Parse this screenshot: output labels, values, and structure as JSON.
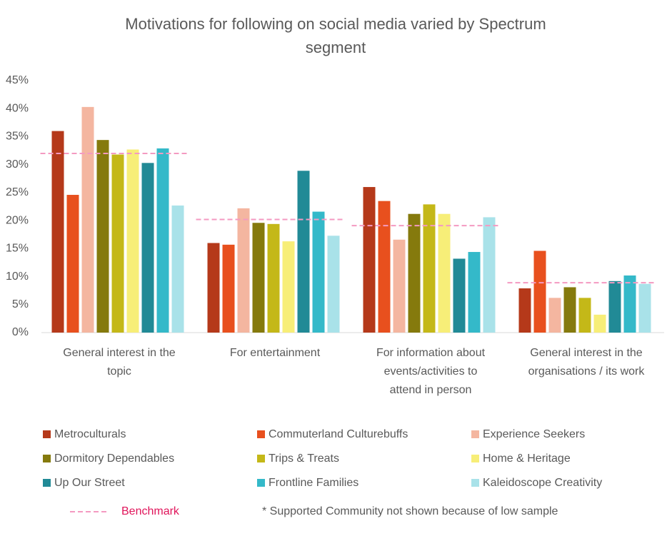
{
  "chart_data": {
    "type": "bar",
    "title": "Motivations for following on social media varied by Spectrum segment",
    "categories": [
      "General interest in the topic",
      "For entertainment",
      "For information about events/activities to attend in person",
      "General interest in the organisations / its work"
    ],
    "series": [
      {
        "name": "Metroculturals",
        "color": "#b5391a",
        "values": [
          36,
          16,
          26,
          7.9
        ]
      },
      {
        "name": "Commuterland Culturebuffs",
        "color": "#e8501e",
        "values": [
          24.6,
          15.7,
          23.5,
          14.6
        ]
      },
      {
        "name": "Experience Seekers",
        "color": "#f4b6a0",
        "values": [
          40.3,
          22.2,
          16.6,
          6.2
        ]
      },
      {
        "name": "Dormitory Dependables",
        "color": "#857a0d",
        "values": [
          34.4,
          19.6,
          21.2,
          8.1
        ]
      },
      {
        "name": "Trips & Treats",
        "color": "#c4b818",
        "values": [
          31.8,
          19.4,
          22.9,
          6.2
        ]
      },
      {
        "name": "Home & Heritage",
        "color": "#f7ee78",
        "values": [
          32.7,
          16.3,
          21.2,
          3.2
        ]
      },
      {
        "name": "Up Our Street",
        "color": "#218a96",
        "values": [
          30.3,
          28.9,
          13.2,
          9.2
        ]
      },
      {
        "name": "Frontline Families",
        "color": "#34b9c9",
        "values": [
          32.9,
          21.6,
          14.4,
          10.2
        ]
      },
      {
        "name": "Kaleidoscope Creativity",
        "color": "#a9e2e9",
        "values": [
          22.7,
          17.3,
          20.6,
          8.7
        ]
      }
    ],
    "benchmark": {
      "name": "Benchmark",
      "color": "#f49ac1",
      "label_color": "#e0145a",
      "values": [
        32,
        20.2,
        19.1,
        8.9
      ]
    },
    "footnote": "* Supported Community not shown because of low sample",
    "ylim": [
      0,
      45
    ],
    "yticks": [
      {
        "value": 0,
        "label": "0%"
      },
      {
        "value": 5,
        "label": "5%"
      },
      {
        "value": 10,
        "label": "10%"
      },
      {
        "value": 15,
        "label": "15%"
      },
      {
        "value": 20,
        "label": "20%"
      },
      {
        "value": 25,
        "label": "25%"
      },
      {
        "value": 30,
        "label": "30%"
      },
      {
        "value": 35,
        "label": "35%"
      },
      {
        "value": 40,
        "label": "40%"
      },
      {
        "value": 45,
        "label": "45%"
      }
    ],
    "grid": false,
    "legend": "bottom"
  }
}
